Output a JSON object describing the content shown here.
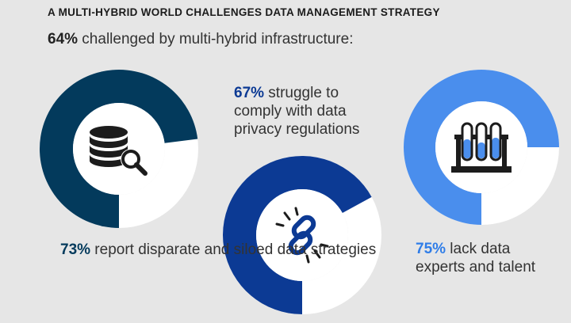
{
  "title": "A MULTI-HYBRID WORLD CHALLENGES DATA MANAGEMENT STRATEGY",
  "subtitle": {
    "value": "64%",
    "text": " challenged by multi-hybrid infrastructure:"
  },
  "colors": {
    "background": "#e6e6e6",
    "remainder": "#ffffff",
    "icon": "#1c1c1c"
  },
  "chart_data": [
    {
      "type": "pie",
      "variant": "donut",
      "value": 73,
      "remainder": 27,
      "color": "#033a5c",
      "icon": "database-search-icon"
    },
    {
      "type": "pie",
      "variant": "donut",
      "value": 67,
      "remainder": 33,
      "color": "#0c3a94",
      "icon": "broken-link-icon"
    },
    {
      "type": "pie",
      "variant": "donut",
      "value": 75,
      "remainder": 25,
      "color": "#4a8eed",
      "icon": "test-tubes-icon"
    }
  ],
  "stats": [
    {
      "value": "73%",
      "text": " report disparate and siloed data strategies",
      "color": "#033a5c"
    },
    {
      "value": "67%",
      "text": " struggle to comply with data privacy regulations",
      "color": "#0c3a94"
    },
    {
      "value": "75%",
      "text": " lack data experts and talent",
      "color": "#2f7de8"
    }
  ]
}
